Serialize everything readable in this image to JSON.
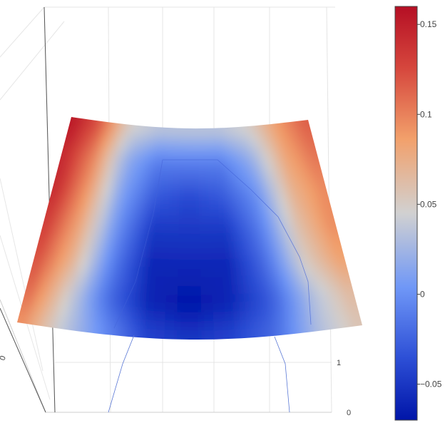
{
  "chart_data": {
    "type": "surface",
    "title": "",
    "colorscale": "coolwarm",
    "colorscale_stops": [
      {
        "t": 0.0,
        "color": "#0015a8"
      },
      {
        "t": 0.15,
        "color": "#2d4fd6"
      },
      {
        "t": 0.32,
        "color": "#6f97f7"
      },
      {
        "t": 0.5,
        "color": "#d1d1d1"
      },
      {
        "t": 0.68,
        "color": "#f2a06b"
      },
      {
        "t": 0.85,
        "color": "#d6473d"
      },
      {
        "t": 1.0,
        "color": "#b50f24"
      }
    ],
    "colorbar": {
      "range": [
        -0.07,
        0.16
      ],
      "ticks": [
        {
          "value": -0.05,
          "label": "−0.05"
        },
        {
          "value": 0,
          "label": "0"
        },
        {
          "value": 0.05,
          "label": "0.05"
        },
        {
          "value": 0.1,
          "label": "0.1"
        },
        {
          "value": 0.15,
          "label": "0.15"
        }
      ]
    },
    "surface_grid_z": [
      [
        0.16,
        0.12,
        0.05,
        0.04,
        0.04,
        0.04,
        0.05,
        0.09,
        0.12
      ],
      [
        0.15,
        0.1,
        0.02,
        -0.01,
        -0.01,
        -0.01,
        0.02,
        0.08,
        0.11
      ],
      [
        0.15,
        0.09,
        0.01,
        -0.03,
        -0.04,
        -0.03,
        0.0,
        0.07,
        0.1
      ],
      [
        0.14,
        0.08,
        0.0,
        -0.05,
        -0.05,
        -0.05,
        -0.01,
        0.06,
        0.1
      ],
      [
        0.13,
        0.07,
        -0.01,
        -0.06,
        -0.06,
        -0.06,
        -0.02,
        0.05,
        0.09
      ],
      [
        0.12,
        0.05,
        -0.02,
        -0.06,
        -0.07,
        -0.06,
        -0.03,
        0.03,
        0.07
      ],
      [
        0.1,
        0.04,
        0.0,
        -0.04,
        -0.05,
        -0.04,
        -0.02,
        0.03,
        0.06
      ]
    ],
    "axis_tick_labels": {
      "y_axis": [
        "1",
        "0"
      ],
      "x_axis_left": [
        "0"
      ]
    },
    "grid": true
  }
}
